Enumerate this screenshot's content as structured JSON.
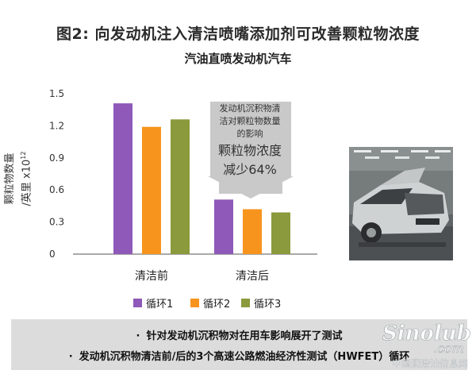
{
  "figure": {
    "title": "图2: 向发动机注入清洁喷嘴添加剂可改善颗粒物浓度",
    "subtitle": "汽油直喷发动机汽车"
  },
  "chart_data": {
    "type": "bar",
    "ylabel_line1": "颗粒物数量",
    "ylabel_line2": "/英里 x10",
    "ylabel_exponent": "12",
    "categories": [
      "清洁前",
      "清洁后"
    ],
    "series": [
      {
        "name": "循环1",
        "color": "#8e59b8",
        "values": [
          1.41,
          0.51
        ]
      },
      {
        "name": "循环2",
        "color": "#f7941d",
        "values": [
          1.19,
          0.42
        ]
      },
      {
        "name": "循环3",
        "color": "#8a9a3c",
        "values": [
          1.26,
          0.39
        ]
      }
    ],
    "ylim": [
      0,
      1.5
    ],
    "yticks": [
      0,
      0.3,
      0.6,
      0.9,
      1.2,
      1.5
    ],
    "ytick_labels": [
      "0",
      "0.3",
      "0.6",
      "0.9",
      "1.2",
      "1.5"
    ],
    "grid": false,
    "legend_position": "bottom",
    "annotation": {
      "small_line1": "发动机沉积物清",
      "small_line2": "洁对颗粒物数量",
      "small_line3": "的影响",
      "big_line1": "颗粒物浓度",
      "big_line2": "减少64%"
    }
  },
  "photo": {
    "icon": "car-engine-test-photo"
  },
  "notes": {
    "line1": "针对发动机沉积物对在用车影响展开了测试",
    "line2": "发动机沉积物清洁前/后的3个高速公路燃油经济性测试（HWFET）循环",
    "bullet": "·"
  },
  "watermark": {
    "text1": "Sinolub",
    "text2": ".com",
    "text3": "中国润滑油信息网"
  },
  "colors": {
    "callout_fill": "#c9c9c9",
    "notes_background": "#dcdcdc",
    "axis": "#555555"
  }
}
